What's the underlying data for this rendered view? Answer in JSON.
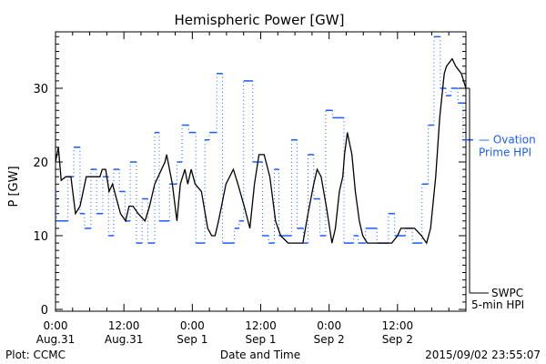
{
  "chart_data": {
    "type": "line",
    "title": "Hemispheric Power [GW]",
    "xlabel": "Date and Time",
    "ylabel": "P [GW]",
    "xlim_hours": [
      0,
      72
    ],
    "ylim": [
      0,
      37
    ],
    "yticks": [
      0,
      10,
      20,
      30
    ],
    "xticks": [
      {
        "hour": 0,
        "time": "0:00",
        "date": "Aug.31"
      },
      {
        "hour": 12,
        "time": "12:00",
        "date": "Aug.31"
      },
      {
        "hour": 24,
        "time": "0:00",
        "date": "Sep 1"
      },
      {
        "hour": 36,
        "time": "12:00",
        "date": "Sep 1"
      },
      {
        "hour": 48,
        "time": "0:00",
        "date": "Sep 2"
      },
      {
        "hour": 60,
        "time": "12:00",
        "date": "Sep 2"
      }
    ],
    "series": [
      {
        "name": "SWPC 5-min HPI",
        "legend": [
          "SWPC",
          "5-min HPI"
        ],
        "color": "#000000",
        "style": "solid",
        "points": [
          [
            0,
            20
          ],
          [
            0.5,
            22
          ],
          [
            1,
            17.5
          ],
          [
            1.8,
            18
          ],
          [
            2.7,
            18
          ],
          [
            3.5,
            13
          ],
          [
            4.3,
            14
          ],
          [
            5.4,
            18
          ],
          [
            7.8,
            18
          ],
          [
            8.2,
            19
          ],
          [
            8.8,
            19
          ],
          [
            9.4,
            16
          ],
          [
            10,
            17
          ],
          [
            11.4,
            13
          ],
          [
            12.3,
            12
          ],
          [
            12.9,
            14
          ],
          [
            13.6,
            14
          ],
          [
            14.5,
            13
          ],
          [
            15.7,
            12
          ],
          [
            16.5,
            14
          ],
          [
            17.4,
            17
          ],
          [
            19.2,
            20
          ],
          [
            19.5,
            21
          ],
          [
            20.5,
            17
          ],
          [
            21.3,
            12
          ],
          [
            21.9,
            17
          ],
          [
            22.7,
            19
          ],
          [
            23.2,
            17
          ],
          [
            23.8,
            19
          ],
          [
            24.5,
            17
          ],
          [
            25.6,
            16
          ],
          [
            26.7,
            11
          ],
          [
            27.4,
            10
          ],
          [
            28,
            10
          ],
          [
            28.6,
            12
          ],
          [
            29.9,
            17
          ],
          [
            31.2,
            19
          ],
          [
            32,
            17
          ],
          [
            33.1,
            14
          ],
          [
            34.1,
            11
          ],
          [
            34.9,
            17
          ],
          [
            35.7,
            21
          ],
          [
            36.6,
            21
          ],
          [
            37.6,
            18
          ],
          [
            38.6,
            12
          ],
          [
            39.5,
            10
          ],
          [
            40.8,
            9
          ],
          [
            42.4,
            9
          ],
          [
            43.4,
            9
          ],
          [
            44.3,
            13
          ],
          [
            45.3,
            17
          ],
          [
            45.9,
            19
          ],
          [
            46.6,
            18
          ],
          [
            47.5,
            14
          ],
          [
            48.5,
            9
          ],
          [
            49.1,
            11
          ],
          [
            49.8,
            16
          ],
          [
            50.4,
            18
          ],
          [
            50.7,
            21
          ],
          [
            51.2,
            24
          ],
          [
            52,
            21
          ],
          [
            52.6,
            16
          ],
          [
            53.3,
            12
          ],
          [
            53.9,
            10
          ],
          [
            54.7,
            9
          ],
          [
            59,
            9
          ],
          [
            60,
            10
          ],
          [
            60.6,
            11
          ],
          [
            63,
            11
          ],
          [
            64.2,
            10
          ],
          [
            65.1,
            9
          ],
          [
            65.8,
            11
          ],
          [
            66.7,
            18
          ],
          [
            67.4,
            26
          ],
          [
            68.2,
            32
          ],
          [
            68.6,
            33
          ],
          [
            69.6,
            34
          ],
          [
            70.2,
            33
          ],
          [
            71.2,
            32
          ],
          [
            72,
            30
          ]
        ]
      },
      {
        "name": "Ovation Prime HPI",
        "legend": [
          "— Ovation",
          "Prime HPI"
        ],
        "color": "#1a5cff",
        "style": "step",
        "steps": [
          [
            0,
            16
          ],
          [
            0.2,
            12
          ],
          [
            2.2,
            18
          ],
          [
            3.2,
            22
          ],
          [
            4.3,
            13
          ],
          [
            5.1,
            11
          ],
          [
            6.2,
            19
          ],
          [
            7.2,
            13
          ],
          [
            8.3,
            18
          ],
          [
            9.3,
            10
          ],
          [
            10.2,
            19
          ],
          [
            11.2,
            16
          ],
          [
            12.2,
            12
          ],
          [
            13.1,
            20
          ],
          [
            14.2,
            9
          ],
          [
            15.2,
            15
          ],
          [
            16.2,
            9
          ],
          [
            17.4,
            24
          ],
          [
            18.2,
            12
          ],
          [
            20,
            17
          ],
          [
            21.3,
            20
          ],
          [
            22.2,
            25
          ],
          [
            23.4,
            24
          ],
          [
            24.6,
            9
          ],
          [
            26.2,
            23
          ],
          [
            27,
            24
          ],
          [
            28.3,
            32
          ],
          [
            29.3,
            9
          ],
          [
            31.4,
            11
          ],
          [
            32.2,
            12
          ],
          [
            33,
            31
          ],
          [
            34.6,
            20
          ],
          [
            36.3,
            10
          ],
          [
            37.4,
            9
          ],
          [
            38.4,
            19
          ],
          [
            39.2,
            10
          ],
          [
            41.4,
            23
          ],
          [
            42.4,
            11
          ],
          [
            43.5,
            9
          ],
          [
            44.3,
            21
          ],
          [
            45.3,
            15
          ],
          [
            46.4,
            10
          ],
          [
            47.4,
            27
          ],
          [
            48.6,
            26
          ],
          [
            50.6,
            9
          ],
          [
            52.3,
            10
          ],
          [
            53.1,
            9
          ],
          [
            54.4,
            11
          ],
          [
            56.4,
            9
          ],
          [
            58.4,
            13
          ],
          [
            59.5,
            10
          ],
          [
            61.4,
            11
          ],
          [
            62.6,
            9
          ],
          [
            64.3,
            17
          ],
          [
            65.4,
            25
          ],
          [
            66.4,
            37
          ],
          [
            67.5,
            30
          ],
          [
            68.5,
            29
          ],
          [
            69.4,
            30
          ],
          [
            70.6,
            28
          ],
          [
            71.5,
            23
          ],
          [
            72,
            23
          ]
        ]
      }
    ]
  },
  "footer": {
    "left": "Plot: CCMC",
    "right": "2015/09/02 23:55:07"
  }
}
